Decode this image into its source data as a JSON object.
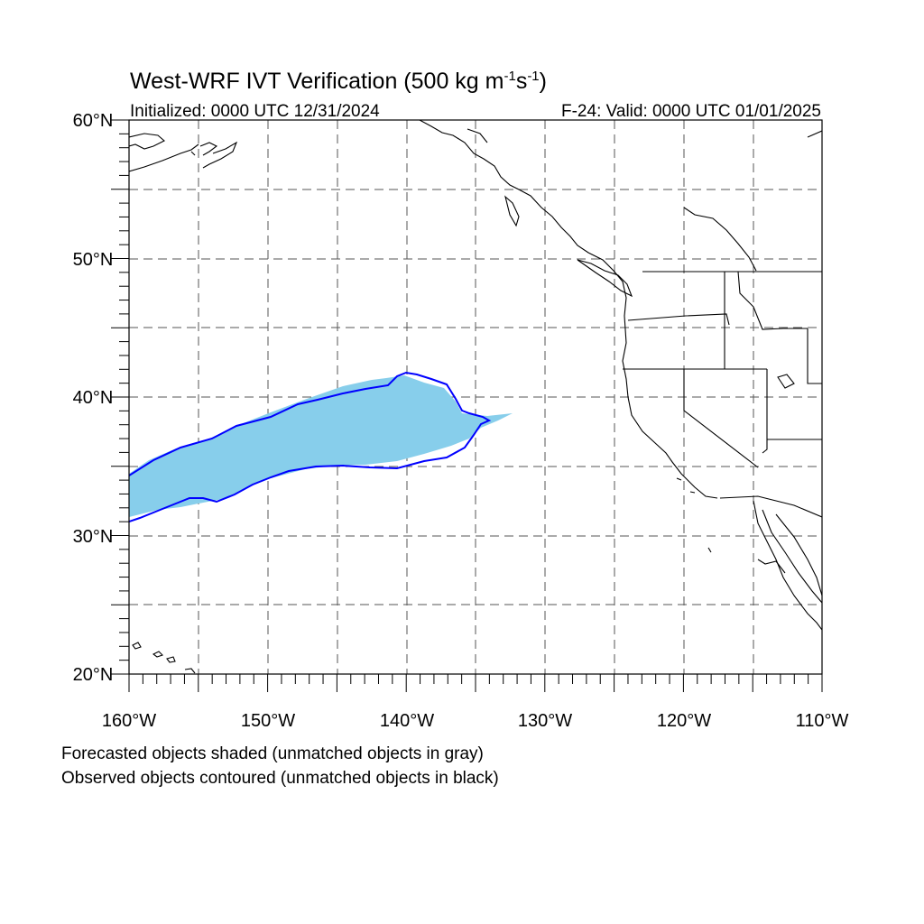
{
  "title": {
    "prefix": "West-WRF IVT Verification (500 kg m",
    "sup1": "-1",
    "mid": "s",
    "sup2": "-1",
    "suffix": ")"
  },
  "subtitle_left": "Initialized: 0000 UTC 12/31/2024",
  "subtitle_right": "F-24: Valid: 0000 UTC 01/01/2025",
  "latitude_labels": [
    "60°N",
    "50°N",
    "40°N",
    "30°N",
    "20°N"
  ],
  "longitude_labels": [
    "160°W",
    "150°W",
    "140°W",
    "130°W",
    "120°W",
    "110°W"
  ],
  "map_extent": {
    "lon_min": -160,
    "lon_max": -110,
    "lat_min": 20,
    "lat_max": 60
  },
  "grid": {
    "style": "dashed",
    "lon_step": 5,
    "lat_step": 5
  },
  "colors": {
    "forecast_fill": "#87ceeb",
    "observed_contour": "#0000ff",
    "coastline": "#000000",
    "grid": "#555555"
  },
  "legend": {
    "line1": "Forecasted objects shaded (unmatched objects in gray)",
    "line2": "Observed objects contoured (unmatched objects in black)"
  }
}
